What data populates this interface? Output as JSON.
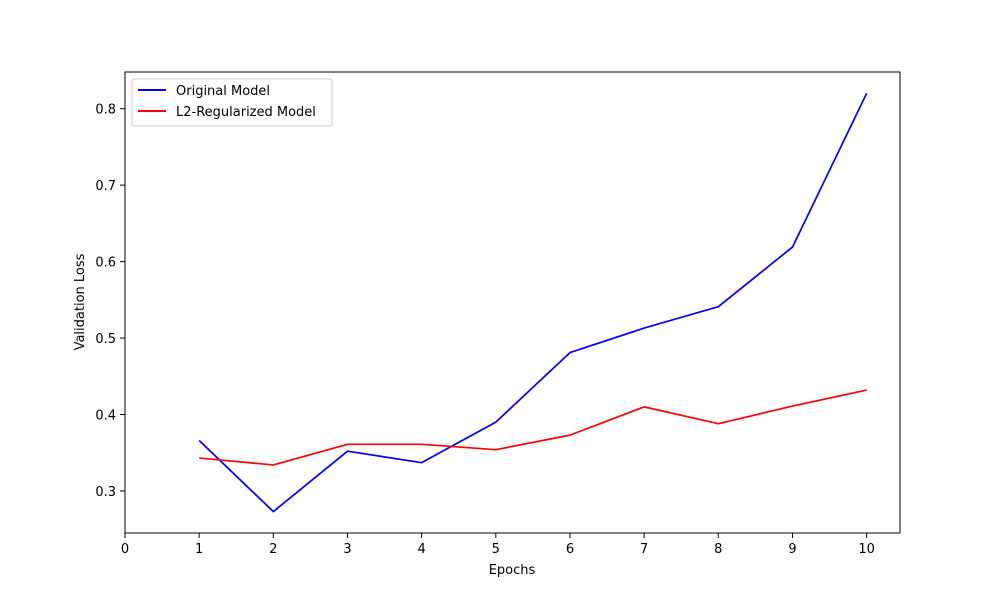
{
  "chart_data": {
    "type": "line",
    "title": "",
    "xlabel": "Epochs",
    "ylabel": "Validation Loss",
    "xlim": [
      0,
      10.45
    ],
    "ylim": [
      0.245,
      0.848
    ],
    "xticks": [
      0,
      1,
      2,
      3,
      4,
      5,
      6,
      7,
      8,
      9,
      10
    ],
    "xtick_labels": [
      "0",
      "1",
      "2",
      "3",
      "4",
      "5",
      "6",
      "7",
      "8",
      "9",
      "10"
    ],
    "yticks": [
      0.3,
      0.4,
      0.5,
      0.6,
      0.7,
      0.8
    ],
    "ytick_labels": [
      "0.3",
      "0.4",
      "0.5",
      "0.6",
      "0.7",
      "0.8"
    ],
    "grid": false,
    "legend_position": "top-left",
    "x": [
      1,
      2,
      3,
      4,
      5,
      6,
      7,
      8,
      9,
      10
    ],
    "series": [
      {
        "name": "Original Model",
        "color": "#0000ff",
        "values": [
          0.366,
          0.273,
          0.352,
          0.337,
          0.39,
          0.481,
          0.513,
          0.541,
          0.619,
          0.82
        ]
      },
      {
        "name": "L2-Regularized Model",
        "color": "#ff0000",
        "values": [
          0.343,
          0.334,
          0.361,
          0.361,
          0.354,
          0.373,
          0.41,
          0.388,
          0.411,
          0.432
        ]
      }
    ]
  }
}
